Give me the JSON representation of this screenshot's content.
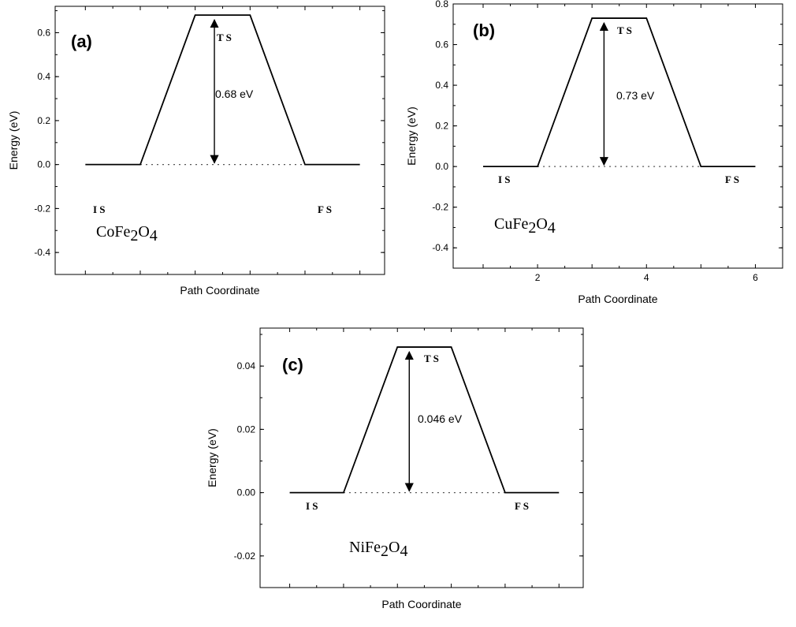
{
  "chart_data": [
    {
      "type": "line",
      "panel_label": "(a)",
      "xlabel": "Path Coordinate",
      "ylabel": "Energy (eV)",
      "ylim": [
        -0.5,
        0.72
      ],
      "y_ticks": [
        "0.6",
        "0.4",
        "0.2",
        "0.0",
        "-0.2",
        "-0.4"
      ],
      "x_tick_labels": [],
      "x": [
        1,
        2,
        3,
        4,
        5,
        6
      ],
      "values": [
        0.0,
        0.0,
        0.68,
        0.68,
        0.0,
        0.0
      ],
      "barrier": "0.68 eV",
      "state_labels": {
        "is": "I S",
        "ts": "T S",
        "fs": "F S"
      },
      "compound": {
        "main": "CoFe",
        "sub1": "2",
        "mid": "O",
        "sub2": "4"
      }
    },
    {
      "type": "line",
      "panel_label": "(b)",
      "xlabel": "Path Coordinate",
      "ylabel": "Energy (eV)",
      "ylim": [
        -0.5,
        0.8
      ],
      "y_ticks": [
        "0.8",
        "0.6",
        "0.4",
        "0.2",
        "0.0",
        "-0.2",
        "-0.4"
      ],
      "x_tick_labels": [
        "2",
        "4",
        "6"
      ],
      "x": [
        1,
        2,
        3,
        4,
        5,
        6
      ],
      "values": [
        0.0,
        0.0,
        0.73,
        0.73,
        0.0,
        0.0
      ],
      "barrier": "0.73 eV",
      "state_labels": {
        "is": "I S",
        "ts": "T S",
        "fs": "F S"
      },
      "compound": {
        "main": "CuFe",
        "sub1": "2",
        "mid": "O",
        "sub2": "4"
      }
    },
    {
      "type": "line",
      "panel_label": "(c)",
      "xlabel": "Path Coordinate",
      "ylabel": "Energy (eV)",
      "ylim": [
        -0.03,
        0.052
      ],
      "y_ticks": [
        "0.04",
        "0.02",
        "0.00",
        "-0.02"
      ],
      "x_tick_labels": [],
      "x": [
        1,
        2,
        3,
        4,
        5,
        6
      ],
      "values": [
        0.0,
        0.0,
        0.046,
        0.046,
        0.0,
        0.0
      ],
      "barrier": "0.046 eV",
      "state_labels": {
        "is": "I S",
        "ts": "T S",
        "fs": "F S"
      },
      "compound": {
        "main": "NiFe",
        "sub1": "2",
        "mid": "O",
        "sub2": "4"
      }
    }
  ]
}
